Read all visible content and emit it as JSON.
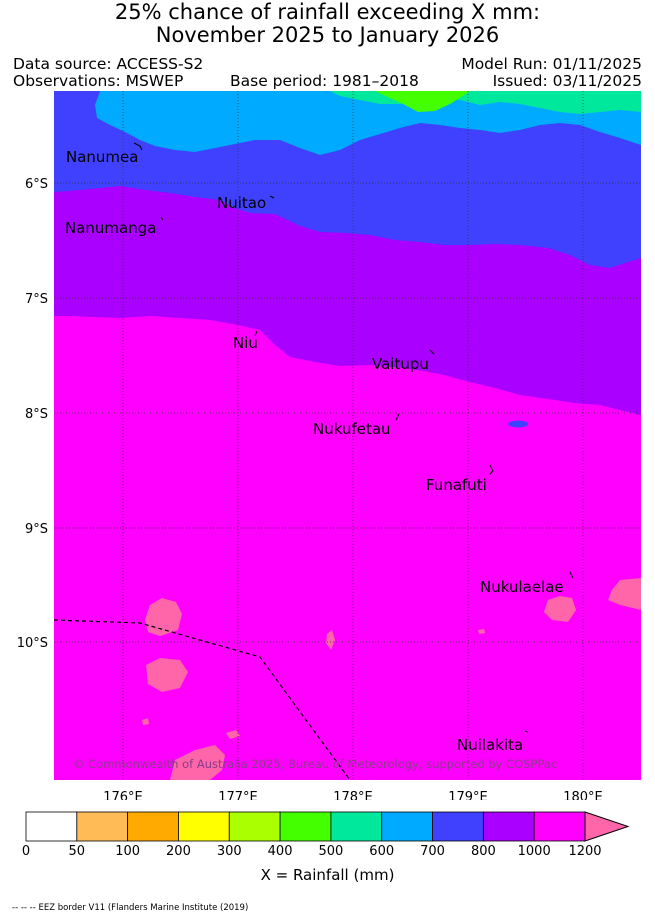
{
  "header": {
    "title_line1": "25% chance of rainfall exceeding X mm:",
    "title_line2": "November 2025 to January 2026",
    "data_source": "Data source: ACCESS-S2",
    "model_run": "Model Run: 01/11/2025",
    "observations": "Observations: MSWEP",
    "base_period": "Base period: 1981–2018",
    "issued": "Issued: 03/11/2025"
  },
  "map": {
    "lat_labels": [
      "6°S",
      "7°S",
      "8°S",
      "9°S",
      "10°S"
    ],
    "lon_labels": [
      "176°E",
      "177°E",
      "178°E",
      "179°E",
      "180°E"
    ],
    "places": [
      "Nanumea",
      "Nuitao",
      "Nanumanga",
      "Niu",
      "Vaitupu",
      "Nukufetau",
      "Funafuti",
      "Nukulaelae",
      "Nuilakita"
    ],
    "copyright": "© Commonwealth of Australia 2025, Bureau of Meteorology, supported by COSPPac"
  },
  "colorbar": {
    "ticks": [
      "0",
      "50",
      "100",
      "200",
      "300",
      "400",
      "500",
      "600",
      "700",
      "800",
      "1000",
      "1200"
    ],
    "colors": [
      "#ffffff",
      "#ffbb55",
      "#ffaa00",
      "#ffff00",
      "#aaff00",
      "#44ff00",
      "#00e89c",
      "#00aaff",
      "#4040ff",
      "#aa00ff",
      "#ff00ff",
      "#ff66aa"
    ],
    "title": "X = Rainfall (mm)"
  },
  "footer": {
    "note": "-- -- -- EEZ border V11 (Flanders Marine Institute (2019)"
  }
}
